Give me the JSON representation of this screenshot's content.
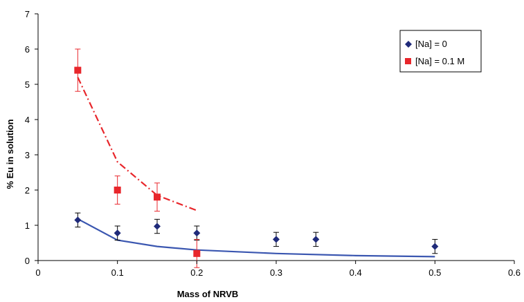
{
  "chart_data": {
    "type": "scatter",
    "title": "",
    "xlabel": "Mass of NRVB",
    "ylabel": "% Eu in solution",
    "xlim": [
      0,
      0.6
    ],
    "ylim": [
      0,
      7
    ],
    "xticks": [
      "0",
      "0.1",
      "0.2",
      "0.3",
      "0.4",
      "0.5",
      "0.6"
    ],
    "yticks": [
      "0",
      "1",
      "2",
      "3",
      "4",
      "5",
      "6",
      "7"
    ],
    "grid": false,
    "legend_position": "top-right",
    "series": [
      {
        "name": "[Na] = 0",
        "marker": "diamond",
        "color": "#1f2a7a",
        "x": [
          0.05,
          0.1,
          0.15,
          0.2,
          0.3,
          0.35,
          0.5
        ],
        "y": [
          1.15,
          0.78,
          0.97,
          0.78,
          0.6,
          0.6,
          0.4
        ],
        "err": [
          0.2,
          0.2,
          0.2,
          0.2,
          0.2,
          0.2,
          0.2
        ]
      },
      {
        "name": "[Na] = 0.1 M",
        "marker": "square",
        "color": "#e8262b",
        "x": [
          0.05,
          0.1,
          0.15,
          0.2
        ],
        "y": [
          5.4,
          2.0,
          1.8,
          0.2
        ],
        "err": [
          0.6,
          0.4,
          0.4,
          0.4
        ]
      }
    ],
    "fits": [
      {
        "style": "solid",
        "color": "#3a56b0",
        "x": [
          0.05,
          0.1,
          0.15,
          0.2,
          0.3,
          0.4,
          0.5
        ],
        "y": [
          1.18,
          0.58,
          0.4,
          0.3,
          0.2,
          0.14,
          0.11
        ]
      },
      {
        "style": "dash-dot",
        "color": "#e8262b",
        "x": [
          0.05,
          0.1,
          0.15,
          0.2
        ],
        "y": [
          5.2,
          2.8,
          1.85,
          1.42
        ]
      }
    ]
  }
}
